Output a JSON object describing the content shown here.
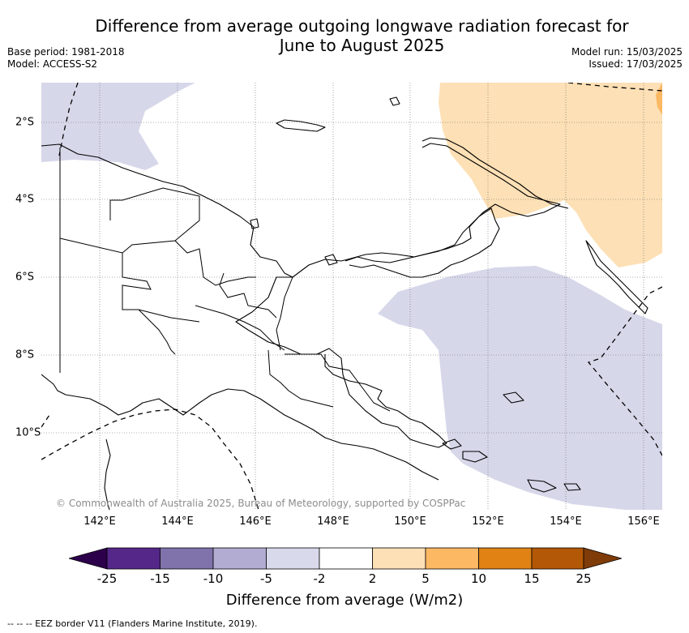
{
  "title_line1": "Difference from average outgoing longwave radiation forecast for",
  "title_line2": "June to August 2025",
  "meta": {
    "base_period": "Base period: 1981-2018",
    "model": "Model: ACCESS-S2",
    "model_run": "Model run: 15/03/2025",
    "issued": "Issued: 17/03/2025"
  },
  "map": {
    "lon_labels": [
      "142°E",
      "144°E",
      "146°E",
      "148°E",
      "150°E",
      "152°E",
      "154°E",
      "156°E"
    ],
    "lat_labels": [
      "2°S",
      "4°S",
      "6°S",
      "8°S",
      "10°S"
    ],
    "copyright": "© Commonwealth of Australia 2025, Bureau of Meteorology, supported by COSPPac",
    "colors": {
      "light_purple": "#d7d7ea",
      "light_orange": "#fde0b5",
      "orange": "#fdb863"
    }
  },
  "colorbar": {
    "ticks": [
      "-25",
      "-15",
      "-10",
      "-5",
      "-2",
      "2",
      "5",
      "10",
      "15",
      "25"
    ],
    "colors": [
      "#2d004b",
      "#542788",
      "#8073ac",
      "#b2abd2",
      "#d8daeb",
      "#ffffff",
      "#fee0b6",
      "#fdb863",
      "#e08214",
      "#b35806",
      "#7f3b08"
    ],
    "label": "Difference from average (W/m2)"
  },
  "footer": "--  --  -- EEZ border V11 (Flanders Marine Institute, 2019)."
}
